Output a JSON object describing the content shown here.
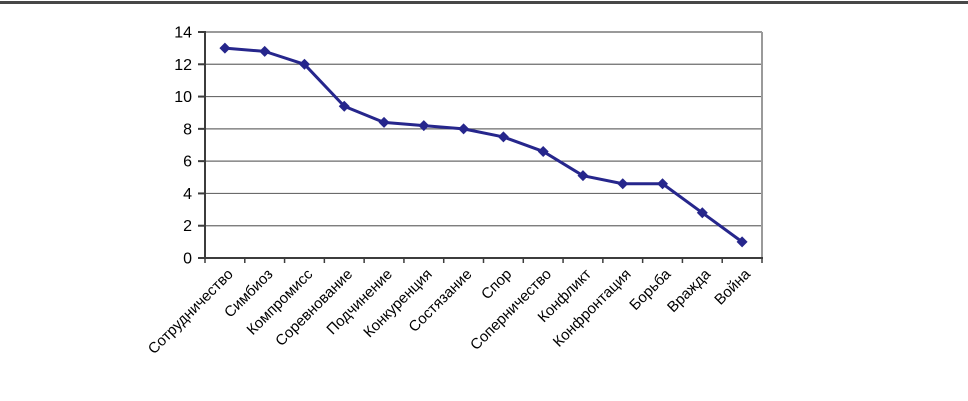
{
  "page": {
    "background": "#ffffff",
    "top_divider_color": "#474747"
  },
  "chart_data": {
    "type": "line",
    "title": "",
    "xlabel": "",
    "ylabel": "",
    "categories": [
      "Сотрудничество",
      "Симбиоз",
      "Компромисс",
      "Соревнование",
      "Подчинение",
      "Конкуренция",
      "Состязание",
      "Спор",
      "Соперничество",
      "Конфликт",
      "Конфронтация",
      "Борьба",
      "Вражда",
      "Война"
    ],
    "values": [
      13,
      12.8,
      12,
      9.4,
      8.4,
      8.2,
      8,
      7.5,
      6.6,
      5.1,
      4.6,
      4.6,
      2.8,
      1
    ],
    "ylim": [
      0,
      14
    ],
    "ytick_step": 2,
    "ytick_labels": [
      "0",
      "2",
      "4",
      "6",
      "8",
      "10",
      "12",
      "14"
    ],
    "grid": true,
    "legend_position": "none",
    "marker": "diamond",
    "colors": {
      "series": "#26268C",
      "gridline": "#6b6b6b",
      "axis": "#3c3c3c",
      "plot_border": "#9a9a9a",
      "text": "#000000"
    }
  }
}
